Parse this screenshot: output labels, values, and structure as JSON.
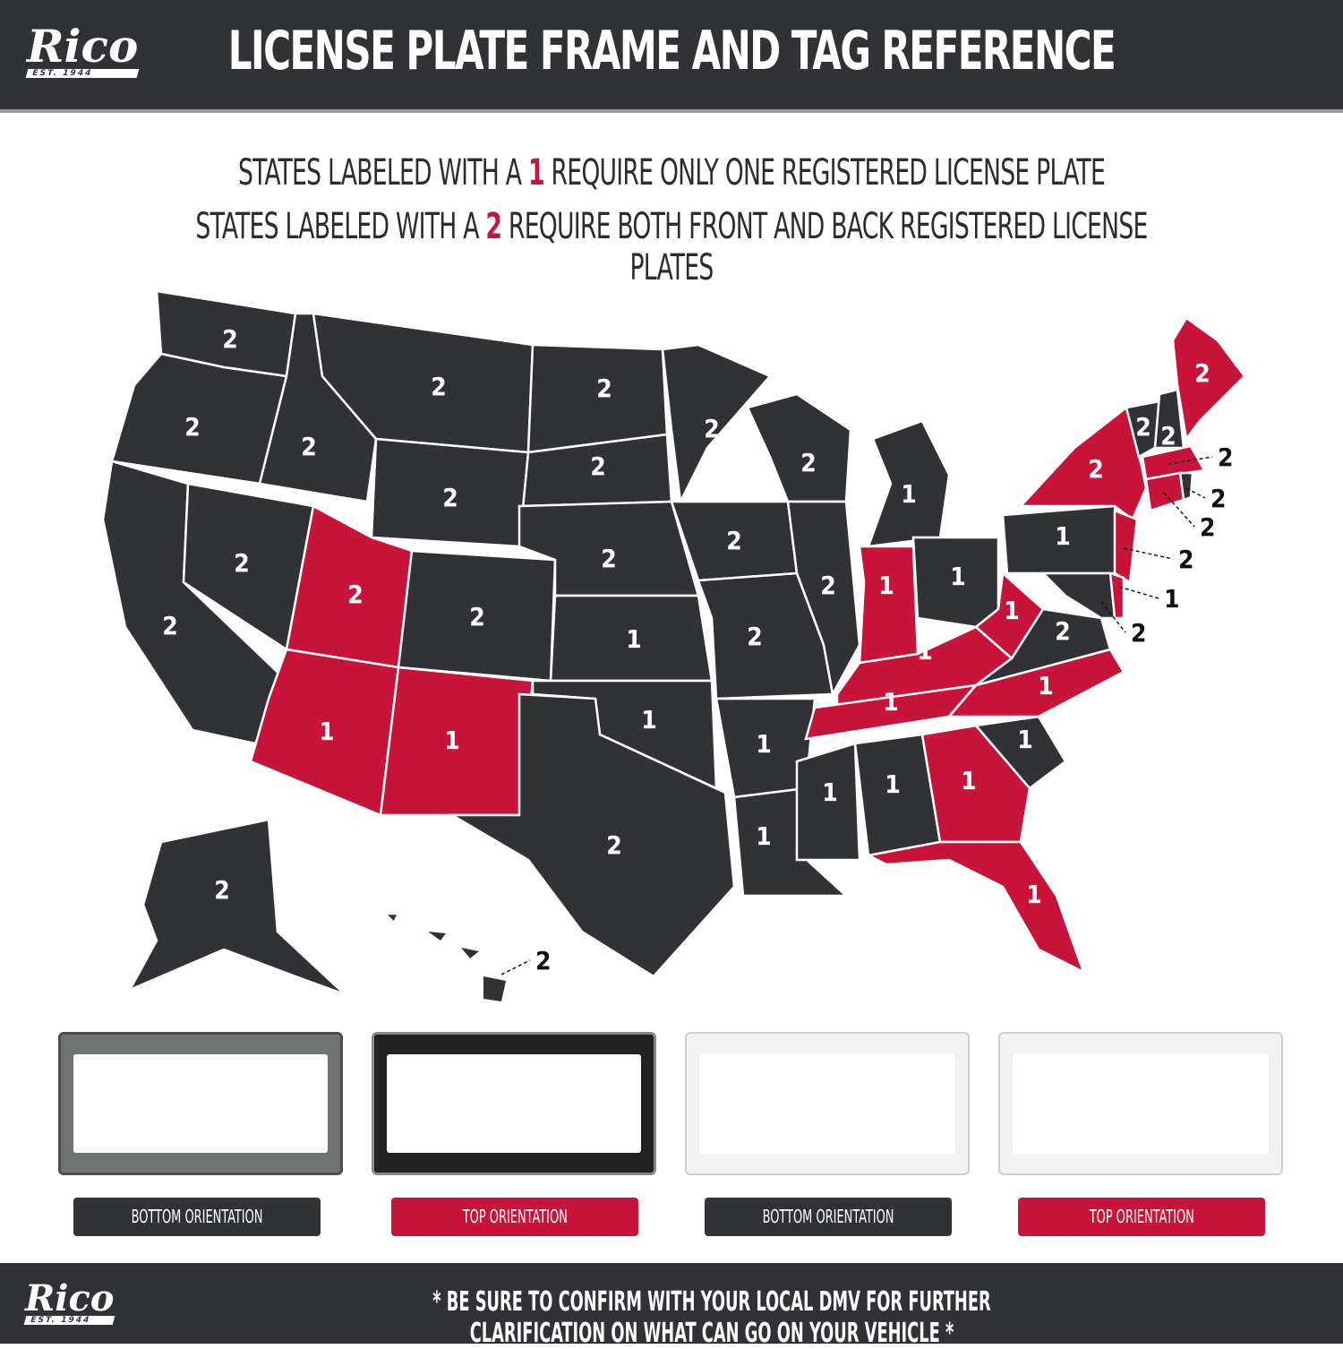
{
  "header": {
    "logo": "Rico",
    "logo_sub": "EST. 1944",
    "title": "License Plate Frame and Tag Reference"
  },
  "legend": {
    "line1": {
      "before": "States labeled with a",
      "num": "1",
      "after": "require only one registered license plate"
    },
    "line2": {
      "before": "States labeled with a",
      "num": "2",
      "after": "require both front and back registered license plates"
    }
  },
  "colors": {
    "dark": "#303236",
    "red": "#c8143a",
    "white": "#ffffff"
  },
  "states": [
    {
      "id": "WA",
      "plates": "2",
      "red": false
    },
    {
      "id": "OR",
      "plates": "2",
      "red": false
    },
    {
      "id": "CA",
      "plates": "2",
      "red": false
    },
    {
      "id": "NV",
      "plates": "2",
      "red": false
    },
    {
      "id": "ID",
      "plates": "2",
      "red": false
    },
    {
      "id": "MT",
      "plates": "2",
      "red": false
    },
    {
      "id": "WY",
      "plates": "2",
      "red": false
    },
    {
      "id": "UT",
      "plates": "2",
      "red": true
    },
    {
      "id": "CO",
      "plates": "2",
      "red": false
    },
    {
      "id": "AZ",
      "plates": "1",
      "red": true
    },
    {
      "id": "NM",
      "plates": "1",
      "red": true
    },
    {
      "id": "ND",
      "plates": "2",
      "red": false
    },
    {
      "id": "SD",
      "plates": "2",
      "red": false
    },
    {
      "id": "NE",
      "plates": "2",
      "red": false
    },
    {
      "id": "KS",
      "plates": "1",
      "red": false
    },
    {
      "id": "OK",
      "plates": "1",
      "red": false
    },
    {
      "id": "TX",
      "plates": "2",
      "red": false
    },
    {
      "id": "MN",
      "plates": "2",
      "red": false
    },
    {
      "id": "IA",
      "plates": "2",
      "red": false
    },
    {
      "id": "MO",
      "plates": "2",
      "red": false
    },
    {
      "id": "AR",
      "plates": "1",
      "red": false
    },
    {
      "id": "LA",
      "plates": "1",
      "red": false
    },
    {
      "id": "WI",
      "plates": "2",
      "red": false
    },
    {
      "id": "IL",
      "plates": "2",
      "red": false
    },
    {
      "id": "MI",
      "plates": "1",
      "red": false
    },
    {
      "id": "IN",
      "plates": "1",
      "red": true
    },
    {
      "id": "OH",
      "plates": "1",
      "red": false
    },
    {
      "id": "KY",
      "plates": "1",
      "red": true
    },
    {
      "id": "TN",
      "plates": "1",
      "red": true
    },
    {
      "id": "MS",
      "plates": "1",
      "red": false
    },
    {
      "id": "AL",
      "plates": "1",
      "red": false
    },
    {
      "id": "GA",
      "plates": "1",
      "red": true
    },
    {
      "id": "FL",
      "plates": "1",
      "red": true
    },
    {
      "id": "SC",
      "plates": "1",
      "red": false
    },
    {
      "id": "NC",
      "plates": "1",
      "red": true
    },
    {
      "id": "VA",
      "plates": "2",
      "red": false
    },
    {
      "id": "WV",
      "plates": "1",
      "red": true
    },
    {
      "id": "PA",
      "plates": "1",
      "red": false
    },
    {
      "id": "NY",
      "plates": "2",
      "red": true
    },
    {
      "id": "VT",
      "plates": "2",
      "red": false
    },
    {
      "id": "NH",
      "plates": "2",
      "red": false
    },
    {
      "id": "ME",
      "plates": "2",
      "red": true
    },
    {
      "id": "MA",
      "plates": "2",
      "red": true
    },
    {
      "id": "RI",
      "plates": "2",
      "red": false
    },
    {
      "id": "CT",
      "plates": "2",
      "red": true
    },
    {
      "id": "NJ",
      "plates": "2",
      "red": true
    },
    {
      "id": "DE",
      "plates": "1",
      "red": true
    },
    {
      "id": "MD",
      "plates": "2",
      "red": false
    },
    {
      "id": "AK",
      "plates": "2",
      "red": false
    },
    {
      "id": "HI",
      "plates": "2",
      "red": false
    }
  ],
  "frames": [
    {
      "label": "Bottom Orientation",
      "style": "dark-metal",
      "badge": "dark"
    },
    {
      "label": "Top Orientation",
      "style": "black-chrome",
      "badge": "red"
    },
    {
      "label": "Bottom Orientation",
      "style": "white",
      "badge": "dark"
    },
    {
      "label": "Top Orientation",
      "style": "white",
      "badge": "red"
    }
  ],
  "footer": {
    "logo": "Rico",
    "logo_sub": "EST. 1944",
    "note": "* Be sure to confirm with your local DMV for further clarification on what can go on your vehicle *"
  }
}
